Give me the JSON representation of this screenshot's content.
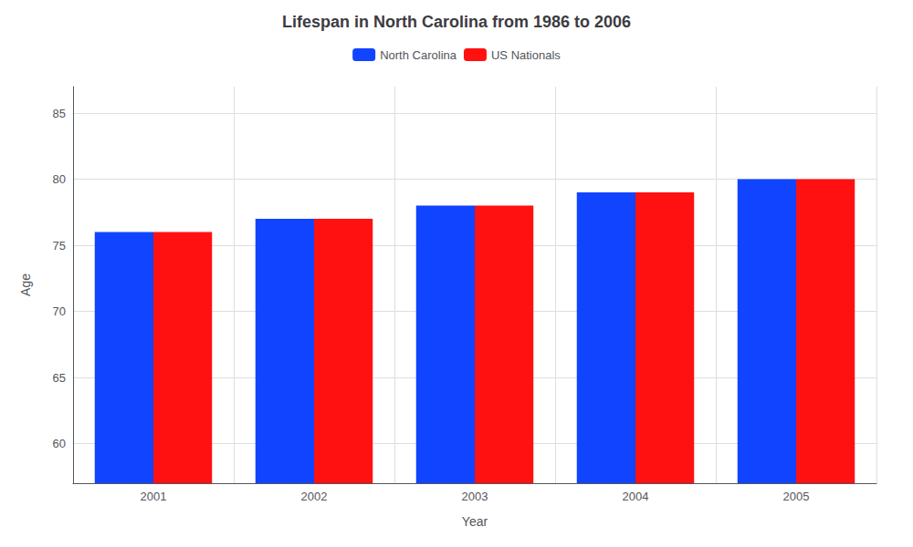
{
  "chart_data": {
    "type": "bar",
    "title": "Lifespan in North Carolina from 1986 to 2006",
    "x_label": "Year",
    "y_label": "Age",
    "categories": [
      "2001",
      "2002",
      "2003",
      "2004",
      "2005"
    ],
    "series": [
      {
        "name": "North Carolina",
        "color": "#1144ff",
        "values": [
          76,
          77,
          78,
          79,
          80
        ]
      },
      {
        "name": "US Nationals",
        "color": "#ff1111",
        "values": [
          76,
          77,
          78,
          79,
          80
        ]
      }
    ],
    "ylim": [
      57,
      87
    ],
    "yticks": [
      60,
      65,
      70,
      75,
      80,
      85
    ],
    "grid": true,
    "legend": "top"
  }
}
